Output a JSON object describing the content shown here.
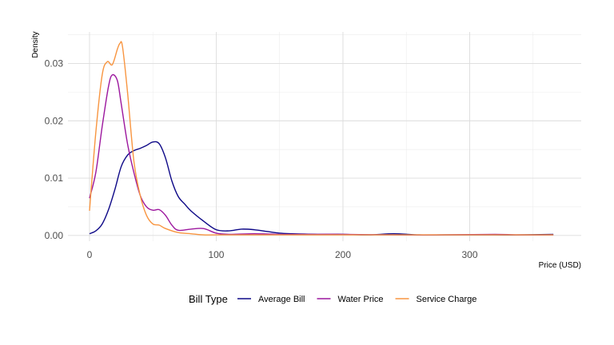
{
  "chart_data": {
    "type": "line",
    "xlabel": "Price (USD)",
    "ylabel": "Density",
    "xlim": [
      -17,
      388
    ],
    "ylim": [
      -0.001,
      0.0355
    ],
    "x_ticks": [
      0,
      100,
      200,
      300
    ],
    "x_tick_labels": [
      "0",
      "100",
      "200",
      "300"
    ],
    "y_ticks": [
      0.0,
      0.01,
      0.02,
      0.03
    ],
    "y_tick_labels": [
      "0.00",
      "0.01",
      "0.02",
      "0.03"
    ],
    "grid": true,
    "legend": {
      "title": "Bill Type",
      "position": "bottom"
    },
    "series": [
      {
        "name": "Average Bill",
        "color": "#0d0887",
        "x": [
          0,
          5,
          10,
          15,
          20,
          25,
          30,
          35,
          40,
          45,
          50,
          55,
          60,
          65,
          70,
          75,
          80,
          90,
          100,
          110,
          120,
          130,
          140,
          150,
          160,
          180,
          200,
          220,
          240,
          260,
          280,
          300,
          320,
          340,
          366
        ],
        "y": [
          0.0003,
          0.0008,
          0.002,
          0.0045,
          0.008,
          0.012,
          0.014,
          0.0148,
          0.0152,
          0.0157,
          0.0163,
          0.016,
          0.0135,
          0.0095,
          0.0068,
          0.0055,
          0.0043,
          0.0025,
          0.001,
          0.0008,
          0.0011,
          0.001,
          0.0007,
          0.0004,
          0.0003,
          0.0002,
          0.0002,
          0.0001,
          0.0003,
          0.0001,
          0.0001,
          0.0001,
          0.0001,
          0.0001,
          0.0002
        ]
      },
      {
        "name": "Water Price",
        "color": "#9c179e",
        "x": [
          0,
          5,
          10,
          15,
          18,
          22,
          25,
          30,
          35,
          40,
          45,
          50,
          55,
          60,
          65,
          70,
          80,
          90,
          100,
          110,
          130,
          150,
          180,
          200,
          240,
          280,
          320,
          340,
          366
        ],
        "y": [
          0.0065,
          0.011,
          0.019,
          0.026,
          0.028,
          0.027,
          0.023,
          0.016,
          0.011,
          0.007,
          0.005,
          0.0044,
          0.0045,
          0.0035,
          0.0018,
          0.0009,
          0.0011,
          0.0012,
          0.0004,
          0.0002,
          0.0003,
          0.0002,
          0.0002,
          0.0002,
          0.0001,
          0.0001,
          0.0002,
          0.0001,
          0.0001
        ]
      },
      {
        "name": "Service Charge",
        "color": "#f89540",
        "x": [
          0,
          5,
          10,
          14,
          18,
          22,
          24,
          26,
          30,
          35,
          40,
          45,
          50,
          55,
          60,
          70,
          80,
          90,
          100,
          120,
          150,
          200,
          250,
          300,
          366
        ],
        "y": [
          0.0043,
          0.018,
          0.028,
          0.0303,
          0.0298,
          0.0325,
          0.0335,
          0.033,
          0.025,
          0.013,
          0.007,
          0.0035,
          0.002,
          0.0018,
          0.0012,
          0.0005,
          0.0003,
          0.0001,
          0.0001,
          0.0001,
          0.0001,
          0.0001,
          0.0001,
          0.0001,
          0.0001
        ]
      }
    ]
  }
}
